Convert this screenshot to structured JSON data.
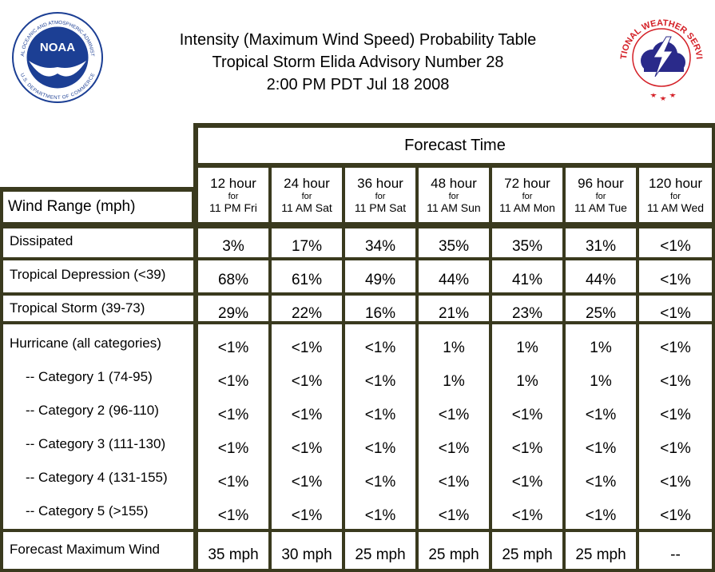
{
  "header": {
    "title_line1": "Intensity (Maximum Wind Speed) Probability Table",
    "title_line2": "Tropical Storm Elida Advisory Number 28",
    "title_line3": "2:00 PM PDT Jul 18 2008"
  },
  "logos": {
    "noaa_text": "NOAA",
    "noaa_ring_top": "NATIONAL OCEANIC AND ATMOSPHERIC ADMINISTRATION",
    "noaa_ring_bottom": "U.S. DEPARTMENT OF COMMERCE",
    "nws_ring": "NATIONAL WEATHER SERVICE"
  },
  "table": {
    "forecast_time_label": "Forecast Time",
    "wind_range_label": "Wind Range (mph)",
    "columns": [
      {
        "hours": "12 hour",
        "for": "for",
        "when": "11 PM Fri"
      },
      {
        "hours": "24 hour",
        "for": "for",
        "when": "11 AM Sat"
      },
      {
        "hours": "36 hour",
        "for": "for",
        "when": "11 PM Sat"
      },
      {
        "hours": "48 hour",
        "for": "for",
        "when": "11 AM Sun"
      },
      {
        "hours": "72 hour",
        "for": "for",
        "when": "11 AM Mon"
      },
      {
        "hours": "96 hour",
        "for": "for",
        "when": "11 AM Tue"
      },
      {
        "hours": "120 hour",
        "for": "for",
        "when": "11 AM Wed"
      }
    ],
    "rows": [
      {
        "label": "Dissipated",
        "values": [
          "3%",
          "17%",
          "34%",
          "35%",
          "35%",
          "31%",
          "<1%"
        ]
      },
      {
        "label": "Tropical Depression (<39)",
        "values": [
          "68%",
          "61%",
          "49%",
          "44%",
          "41%",
          "44%",
          "<1%"
        ]
      },
      {
        "label": "Tropical Storm (39-73)",
        "values": [
          "29%",
          "22%",
          "16%",
          "21%",
          "23%",
          "25%",
          "<1%"
        ]
      },
      {
        "label": "Hurricane (all categories)",
        "values": [
          "<1%",
          "<1%",
          "<1%",
          "1%",
          "1%",
          "1%",
          "<1%"
        ]
      },
      {
        "label": "-- Category 1 (74-95)",
        "values": [
          "<1%",
          "<1%",
          "<1%",
          "1%",
          "1%",
          "1%",
          "<1%"
        ]
      },
      {
        "label": "-- Category 2 (96-110)",
        "values": [
          "<1%",
          "<1%",
          "<1%",
          "<1%",
          "<1%",
          "<1%",
          "<1%"
        ]
      },
      {
        "label": "-- Category 3 (111-130)",
        "values": [
          "<1%",
          "<1%",
          "<1%",
          "<1%",
          "<1%",
          "<1%",
          "<1%"
        ]
      },
      {
        "label": "-- Category 4 (131-155)",
        "values": [
          "<1%",
          "<1%",
          "<1%",
          "<1%",
          "<1%",
          "<1%",
          "<1%"
        ]
      },
      {
        "label": "-- Category 5 (>155)",
        "values": [
          "<1%",
          "<1%",
          "<1%",
          "<1%",
          "<1%",
          "<1%",
          "<1%"
        ]
      }
    ],
    "max_wind": {
      "label": "Forecast Maximum Wind",
      "values": [
        "35 mph",
        "30 mph",
        "25 mph",
        "25 mph",
        "25 mph",
        "25 mph",
        "--"
      ]
    }
  },
  "colors": {
    "border": "#3a3a1e",
    "noaa_blue": "#1c3f94",
    "nws_red": "#d42027"
  }
}
